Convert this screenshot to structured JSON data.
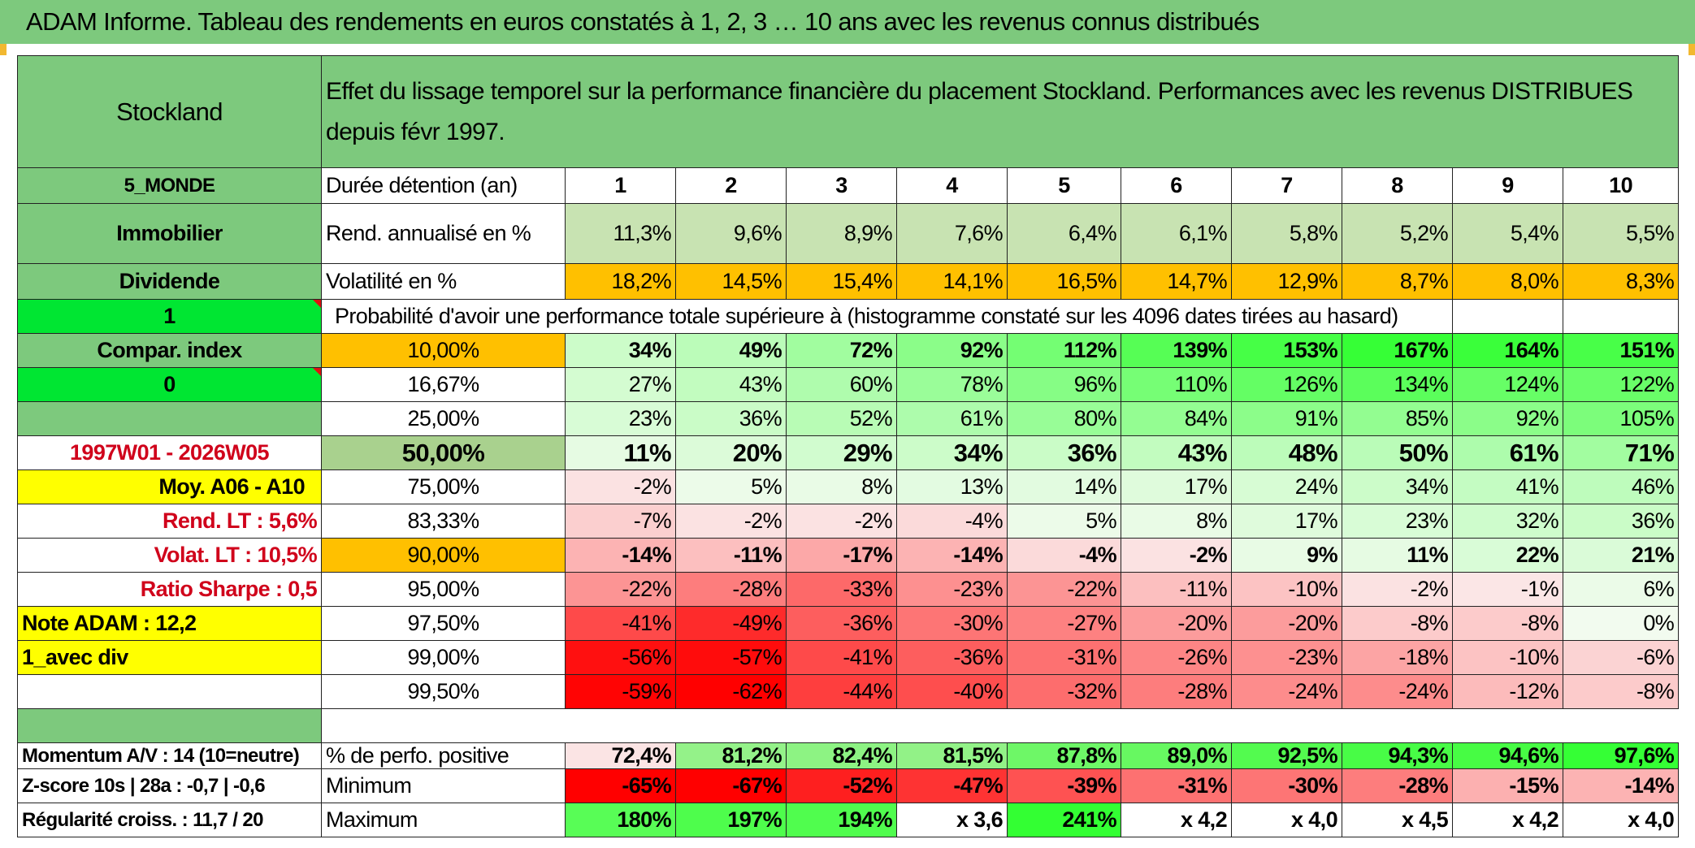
{
  "title": "ADAM Informe. Tableau des rendements en euros constatés à 1, 2, 3 … 10 ans avec les revenus connus distribués",
  "header": {
    "name": "Stockland",
    "description": "Effet du lissage temporel sur la performance financière du placement Stockland. Performances avec les revenus DISTRIBUES depuis févr 1997."
  },
  "left": {
    "zone": "5_MONDE",
    "sector": "Immobilier",
    "type": "Dividende",
    "flag1": "1",
    "compar": "Compar. index",
    "flag2": "0",
    "period": "1997W01 - 2026W05",
    "moy": "Moy. A06 - A10",
    "rend_lt": "Rend. LT :   5,6%",
    "volat_lt": "Volat. LT :   10,5%",
    "sharpe": "Ratio Sharpe :    0,5",
    "note": "Note ADAM : 12,2",
    "mode": "1_avec div",
    "momentum": "Momentum A/V : 14 (10=neutre)",
    "zscore": "Z-score 10s | 28a : -0,7 | -0,6",
    "regularite": "Régularité croiss. : 11,7 / 20"
  },
  "labels": {
    "duration": "Durée détention (an)",
    "rend": "Rend. annualisé en %",
    "vol": "Volatilité en %",
    "proba": "Probabilité d'avoir une performance totale supérieure à (histogramme constaté sur les 4096 dates tirées au hasard)",
    "pos": "% de perfo. positive",
    "min": "Minimum",
    "max": "Maximum"
  },
  "years": [
    "1",
    "2",
    "3",
    "4",
    "5",
    "6",
    "7",
    "8",
    "9",
    "10"
  ],
  "rend": [
    "11,3%",
    "9,6%",
    "8,9%",
    "7,6%",
    "6,4%",
    "6,1%",
    "5,8%",
    "5,2%",
    "5,4%",
    "5,5%"
  ],
  "vol": [
    "18,2%",
    "14,5%",
    "15,4%",
    "14,1%",
    "16,5%",
    "14,7%",
    "12,9%",
    "8,7%",
    "8,0%",
    "8,3%"
  ],
  "quantiles": [
    {
      "q": "10,00%",
      "v": [
        "34%",
        "49%",
        "72%",
        "92%",
        "112%",
        "139%",
        "153%",
        "167%",
        "164%",
        "151%"
      ]
    },
    {
      "q": "16,67%",
      "v": [
        "27%",
        "43%",
        "60%",
        "78%",
        "96%",
        "110%",
        "126%",
        "134%",
        "124%",
        "122%"
      ]
    },
    {
      "q": "25,00%",
      "v": [
        "23%",
        "36%",
        "52%",
        "61%",
        "80%",
        "84%",
        "91%",
        "85%",
        "92%",
        "105%"
      ]
    },
    {
      "q": "50,00%",
      "v": [
        "11%",
        "20%",
        "29%",
        "34%",
        "36%",
        "43%",
        "48%",
        "50%",
        "61%",
        "71%"
      ]
    },
    {
      "q": "75,00%",
      "v": [
        "-2%",
        "5%",
        "8%",
        "13%",
        "14%",
        "17%",
        "24%",
        "34%",
        "41%",
        "46%"
      ]
    },
    {
      "q": "83,33%",
      "v": [
        "-7%",
        "-2%",
        "-2%",
        "-4%",
        "5%",
        "8%",
        "17%",
        "23%",
        "32%",
        "36%"
      ]
    },
    {
      "q": "90,00%",
      "v": [
        "-14%",
        "-11%",
        "-17%",
        "-14%",
        "-4%",
        "-2%",
        "9%",
        "11%",
        "22%",
        "21%"
      ]
    },
    {
      "q": "95,00%",
      "v": [
        "-22%",
        "-28%",
        "-33%",
        "-23%",
        "-22%",
        "-11%",
        "-10%",
        "-2%",
        "-1%",
        "6%"
      ]
    },
    {
      "q": "97,50%",
      "v": [
        "-41%",
        "-49%",
        "-36%",
        "-30%",
        "-27%",
        "-20%",
        "-20%",
        "-8%",
        "-8%",
        "0%"
      ]
    },
    {
      "q": "99,00%",
      "v": [
        "-56%",
        "-57%",
        "-41%",
        "-36%",
        "-31%",
        "-26%",
        "-23%",
        "-18%",
        "-10%",
        "-6%"
      ]
    },
    {
      "q": "99,50%",
      "v": [
        "-59%",
        "-62%",
        "-44%",
        "-40%",
        "-32%",
        "-28%",
        "-24%",
        "-24%",
        "-12%",
        "-8%"
      ]
    }
  ],
  "positive": [
    "72,4%",
    "81,2%",
    "82,4%",
    "81,5%",
    "87,8%",
    "89,0%",
    "92,5%",
    "94,3%",
    "94,6%",
    "97,6%"
  ],
  "minimum": [
    "-65%",
    "-67%",
    "-52%",
    "-47%",
    "-39%",
    "-31%",
    "-30%",
    "-28%",
    "-15%",
    "-14%"
  ],
  "maximum": [
    "180%",
    "197%",
    "194%",
    "x 3,6",
    "241%",
    "x 4,2",
    "x 4,0",
    "x 4,5",
    "x 4,2",
    "x 4,0"
  ],
  "colors": {
    "header_green": "#7dc97d",
    "bright_green": "#00e632",
    "yellow": "#ffff00",
    "orange": "#ffc000",
    "light_green": "#c8e3b2",
    "median_green": "#a9d18e",
    "red_text": "#d0021b"
  }
}
